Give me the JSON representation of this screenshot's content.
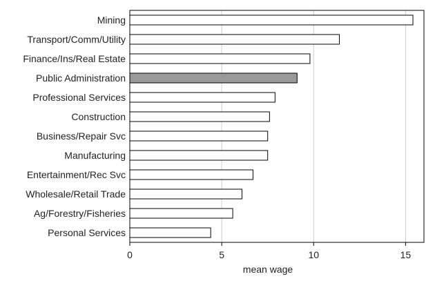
{
  "chart_data": {
    "type": "bar",
    "orientation": "horizontal",
    "categories": [
      "Mining",
      "Transport/Comm/Utility",
      "Finance/Ins/Real Estate",
      "Public Administration",
      "Professional Services",
      "Construction",
      "Business/Repair Svc",
      "Manufacturing",
      "Entertainment/Rec Svc",
      "Wholesale/Retail Trade",
      "Ag/Forestry/Fisheries",
      "Personal Services"
    ],
    "values": [
      15.4,
      11.4,
      9.8,
      9.1,
      7.9,
      7.6,
      7.5,
      7.5,
      6.7,
      6.1,
      5.6,
      4.4
    ],
    "highlight": "Public Administration",
    "xlabel": "mean wage",
    "ylabel": "",
    "xlim": [
      0,
      16
    ],
    "xticks": [
      0,
      5,
      10,
      15
    ],
    "grid": "vertical",
    "bar_fill": "#ffffff",
    "highlight_fill": "#999999",
    "bar_stroke": "#000000",
    "grid_color": "#cccccc"
  }
}
